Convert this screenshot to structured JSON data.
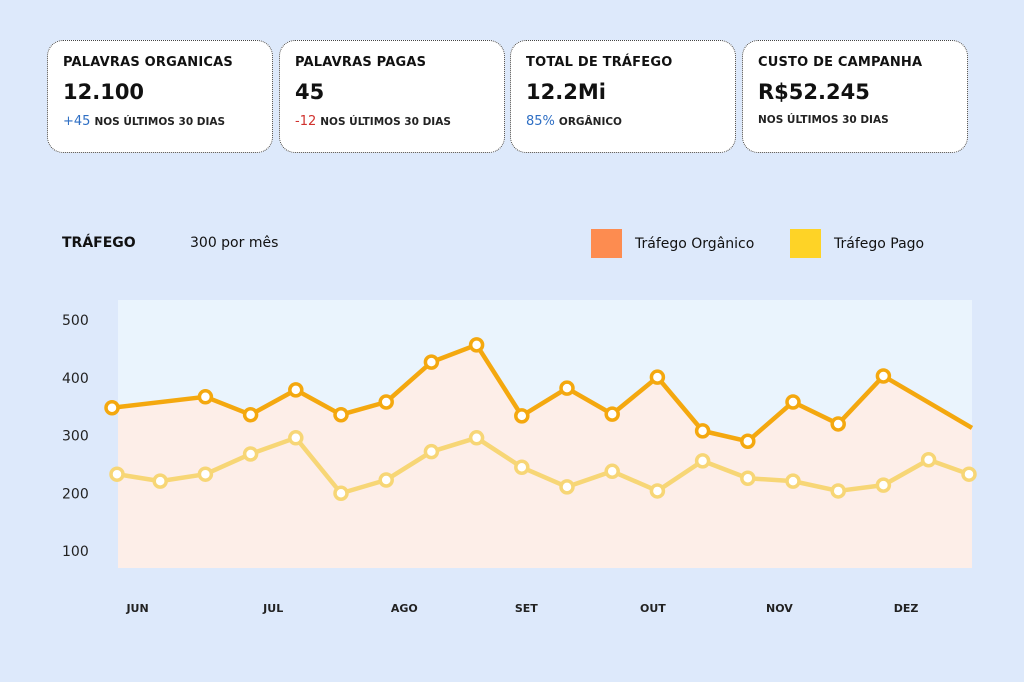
{
  "cards": [
    {
      "title": "PALAVRAS ORGANICAS",
      "value": "12.100",
      "delta": "+45",
      "delta_color": "#2f6fc4",
      "suffix": "NOS ÚLTIMOS 30 DIAS"
    },
    {
      "title": "PALAVRAS PAGAS",
      "value": "45",
      "delta": "-12",
      "delta_color": "#d0312d",
      "suffix": "NOS ÚLTIMOS 30 DIAS"
    },
    {
      "title": "TOTAL DE TRÁFEGO",
      "value": "12.2Mi",
      "delta": "85%",
      "delta_color": "#2f6fc4",
      "suffix": "ORGÂNICO"
    },
    {
      "title": "CUSTO DE CAMPANHA",
      "value": "R$52.245",
      "delta": "",
      "delta_color": "#111",
      "suffix": "NOS ÚLTIMOS 30 DIAS"
    }
  ],
  "chart_data": {
    "type": "line",
    "title": "TRÁFEGO",
    "subtitle": "300 por mês",
    "x": [
      0,
      1,
      2,
      3,
      4,
      5,
      6,
      7,
      8,
      9,
      10,
      11,
      12,
      13,
      14,
      15,
      16,
      17,
      18,
      19
    ],
    "month_ticks": [
      {
        "label": "JUN",
        "x": 0.5
      },
      {
        "label": "JUL",
        "x": 3.5
      },
      {
        "label": "AGO",
        "x": 6.4
      },
      {
        "label": "SET",
        "x": 9.1
      },
      {
        "label": "OUT",
        "x": 11.9
      },
      {
        "label": "NOV",
        "x": 14.7
      },
      {
        "label": "DEZ",
        "x": 17.5
      }
    ],
    "yticks": [
      100,
      200,
      300,
      400,
      500
    ],
    "ylim": [
      70,
      530
    ],
    "series": [
      {
        "name": "Tráfego Orgânico",
        "color": "#f4a80f",
        "legend_color": "#fd8c50",
        "markers": [
          0,
          2,
          3,
          4,
          5,
          6,
          7,
          8,
          9,
          10,
          11,
          12,
          13,
          14,
          15,
          16,
          17
        ],
        "values": [
          348,
          null,
          367,
          336,
          379,
          336,
          358,
          427,
          457,
          334,
          382,
          337,
          401,
          308,
          290,
          358,
          320,
          403,
          null,
          313
        ]
      },
      {
        "name": "Tráfego Pago",
        "color": "#f7d676",
        "legend_color": "#fed326",
        "markers": [
          0,
          1,
          2,
          3,
          4,
          5,
          6,
          7,
          8,
          9,
          10,
          11,
          12,
          13,
          14,
          15,
          16,
          17,
          18,
          19
        ],
        "values": [
          233,
          221,
          233,
          268,
          296,
          200,
          223,
          272,
          296,
          245,
          211,
          238,
          204,
          256,
          226,
          221,
          204,
          214,
          258,
          233
        ]
      }
    ]
  }
}
